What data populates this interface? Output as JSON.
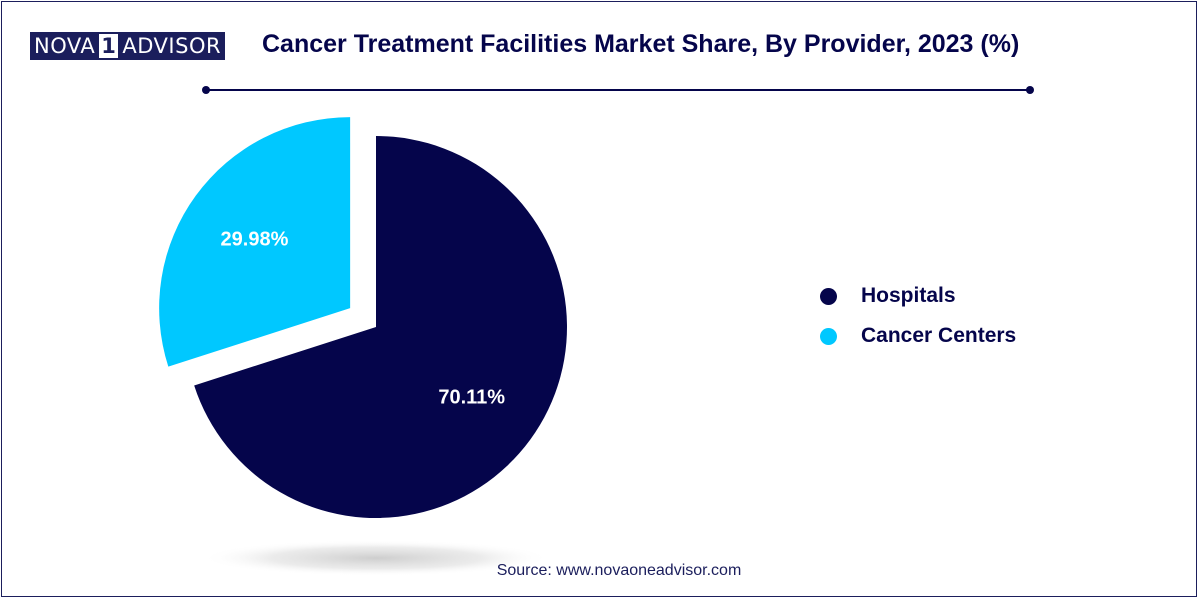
{
  "brand": {
    "logo_part1": "NOVA",
    "logo_number": "1",
    "logo_part2": "ADVISOR"
  },
  "colors": {
    "navy": "#05054b",
    "cyan": "#00c8ff",
    "frame": "#1b1e5c"
  },
  "chart_data": {
    "type": "pie",
    "title": "Cancer Treatment Facilities Market Share, By Provider, 2023 (%)",
    "categories": [
      "Hospitals",
      "Cancer Centers"
    ],
    "values": [
      70.11,
      29.98
    ],
    "value_labels": [
      "70.11%",
      "29.98%"
    ],
    "colors": [
      "#05054b",
      "#00c8ff"
    ],
    "exploded": [
      "",
      "Cancer Centers"
    ],
    "legend_position": "right"
  },
  "source": "Source: www.novaoneadvisor.com"
}
